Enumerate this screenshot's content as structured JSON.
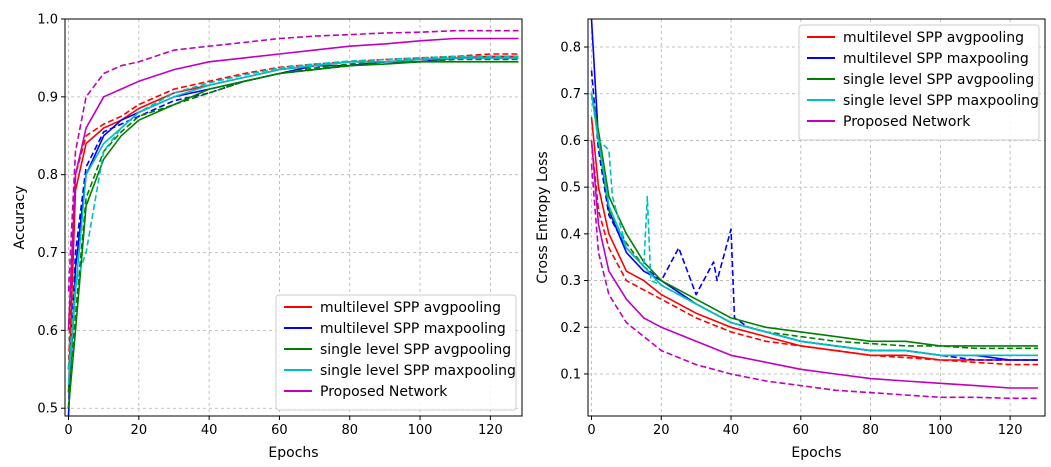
{
  "chart_data": [
    {
      "type": "line",
      "xlabel": "Epochs",
      "ylabel": "Accuracy",
      "xlim": [
        -1,
        129
      ],
      "ylim": [
        0.49,
        1.0
      ],
      "xticks": [
        0,
        20,
        40,
        60,
        80,
        100,
        120
      ],
      "yticks": [
        0.5,
        0.6,
        0.7,
        0.8,
        0.9,
        1.0
      ],
      "ytick_labels": [
        "0.5",
        "0.6",
        "0.7",
        "0.8",
        "0.9",
        "1.0"
      ],
      "grid": true,
      "legend_position": "lower-right",
      "series": [
        {
          "name": "multilevel SPP avgpooling",
          "color": "#ff0000",
          "style": "solid",
          "x": [
            0,
            2,
            5,
            10,
            15,
            20,
            30,
            40,
            50,
            60,
            70,
            80,
            90,
            100,
            110,
            120,
            128
          ],
          "y": [
            0.52,
            0.78,
            0.84,
            0.86,
            0.87,
            0.885,
            0.905,
            0.915,
            0.925,
            0.935,
            0.94,
            0.945,
            0.945,
            0.948,
            0.95,
            0.952,
            0.952
          ]
        },
        {
          "name": "multilevel SPP avgpooling",
          "color": "#ff0000",
          "style": "dashed",
          "x": [
            0,
            2,
            5,
            10,
            15,
            20,
            30,
            40,
            50,
            60,
            70,
            80,
            90,
            100,
            110,
            120,
            128
          ],
          "y": [
            0.55,
            0.8,
            0.85,
            0.865,
            0.875,
            0.89,
            0.91,
            0.92,
            0.93,
            0.938,
            0.942,
            0.945,
            0.948,
            0.95,
            0.952,
            0.955,
            0.955
          ]
        },
        {
          "name": "multilevel SPP maxpooling",
          "color": "#0000ff",
          "style": "solid",
          "x": [
            0,
            2,
            5,
            10,
            15,
            20,
            30,
            40,
            50,
            60,
            70,
            80,
            90,
            100,
            110,
            120,
            128
          ],
          "y": [
            0.49,
            0.68,
            0.8,
            0.85,
            0.87,
            0.88,
            0.9,
            0.91,
            0.92,
            0.93,
            0.94,
            0.94,
            0.945,
            0.945,
            0.95,
            0.95,
            0.95
          ]
        },
        {
          "name": "multilevel SPP maxpooling",
          "color": "#0000ff",
          "style": "dashed",
          "x": [
            0,
            2,
            5,
            10,
            15,
            20,
            30,
            40,
            50,
            60,
            70,
            80,
            90,
            100,
            110,
            120,
            128
          ],
          "y": [
            0.5,
            0.7,
            0.81,
            0.855,
            0.865,
            0.875,
            0.895,
            0.905,
            0.92,
            0.93,
            0.935,
            0.94,
            0.945,
            0.948,
            0.95,
            0.952,
            0.952
          ]
        },
        {
          "name": "single level SPP avgpooling",
          "color": "#008000",
          "style": "solid",
          "x": [
            0,
            2,
            5,
            10,
            15,
            20,
            30,
            40,
            50,
            60,
            70,
            80,
            90,
            100,
            110,
            120,
            128
          ],
          "y": [
            0.5,
            0.6,
            0.76,
            0.82,
            0.85,
            0.87,
            0.89,
            0.91,
            0.92,
            0.93,
            0.935,
            0.94,
            0.942,
            0.945,
            0.945,
            0.945,
            0.945
          ]
        },
        {
          "name": "single level SPP avgpooling",
          "color": "#008000",
          "style": "dashed",
          "x": [
            0,
            2,
            5,
            10,
            15,
            20,
            30,
            40,
            50,
            60,
            70,
            80,
            90,
            100,
            110,
            120,
            128
          ],
          "y": [
            0.52,
            0.62,
            0.77,
            0.83,
            0.855,
            0.875,
            0.89,
            0.905,
            0.92,
            0.93,
            0.937,
            0.942,
            0.945,
            0.945,
            0.948,
            0.948,
            0.948
          ]
        },
        {
          "name": "single level SPP maxpooling",
          "color": "#00bfbf",
          "style": "solid",
          "x": [
            0,
            2,
            5,
            10,
            15,
            20,
            30,
            40,
            50,
            60,
            70,
            80,
            90,
            100,
            110,
            120,
            128
          ],
          "y": [
            0.53,
            0.65,
            0.8,
            0.84,
            0.86,
            0.88,
            0.9,
            0.915,
            0.925,
            0.935,
            0.94,
            0.945,
            0.945,
            0.948,
            0.95,
            0.95,
            0.95
          ]
        },
        {
          "name": "single level SPP maxpooling",
          "color": "#00bfbf",
          "style": "dashed",
          "x": [
            0,
            2,
            5,
            10,
            15,
            20,
            30,
            40,
            50,
            60,
            70,
            80,
            90,
            100,
            110,
            120,
            128
          ],
          "y": [
            0.55,
            0.66,
            0.7,
            0.83,
            0.86,
            0.88,
            0.905,
            0.918,
            0.928,
            0.937,
            0.942,
            0.946,
            0.948,
            0.95,
            0.952,
            0.952,
            0.952
          ]
        },
        {
          "name": "Proposed Network",
          "color": "#bf00bf",
          "style": "solid",
          "x": [
            0,
            2,
            5,
            10,
            15,
            20,
            30,
            40,
            50,
            60,
            70,
            80,
            90,
            100,
            110,
            120,
            128
          ],
          "y": [
            0.6,
            0.8,
            0.86,
            0.9,
            0.91,
            0.92,
            0.935,
            0.945,
            0.95,
            0.955,
            0.96,
            0.965,
            0.968,
            0.972,
            0.975,
            0.975,
            0.975
          ]
        },
        {
          "name": "Proposed Network",
          "color": "#bf00bf",
          "style": "dashed",
          "x": [
            0,
            2,
            5,
            10,
            15,
            20,
            30,
            40,
            50,
            60,
            70,
            80,
            90,
            100,
            110,
            120,
            128
          ],
          "y": [
            0.65,
            0.83,
            0.9,
            0.93,
            0.94,
            0.945,
            0.96,
            0.965,
            0.97,
            0.975,
            0.978,
            0.98,
            0.982,
            0.983,
            0.985,
            0.985,
            0.985
          ]
        }
      ],
      "legend": [
        "multilevel SPP avgpooling",
        "multilevel SPP maxpooling",
        "single level SPP avgpooling",
        "single level SPP maxpooling",
        "Proposed Network"
      ]
    },
    {
      "type": "line",
      "xlabel": "Epochs",
      "ylabel": "Cross Entropy Loss",
      "xlim": [
        -1,
        130
      ],
      "ylim": [
        0.01,
        0.86
      ],
      "xticks": [
        0,
        20,
        40,
        60,
        80,
        100,
        120
      ],
      "yticks": [
        0.1,
        0.2,
        0.3,
        0.4,
        0.5,
        0.6,
        0.7,
        0.8
      ],
      "ytick_labels": [
        "0.1",
        "0.2",
        "0.3",
        "0.4",
        "0.5",
        "0.6",
        "0.7",
        "0.8"
      ],
      "grid": true,
      "legend_position": "top-right",
      "series": [
        {
          "name": "multilevel SPP avgpooling",
          "color": "#ff0000",
          "style": "solid",
          "x": [
            0,
            2,
            5,
            10,
            15,
            20,
            30,
            40,
            50,
            60,
            70,
            80,
            90,
            100,
            110,
            120,
            128
          ],
          "y": [
            0.65,
            0.5,
            0.4,
            0.32,
            0.3,
            0.27,
            0.23,
            0.2,
            0.18,
            0.16,
            0.15,
            0.14,
            0.14,
            0.13,
            0.13,
            0.13,
            0.13
          ]
        },
        {
          "name": "multilevel SPP avgpooling",
          "color": "#ff0000",
          "style": "dashed",
          "x": [
            0,
            2,
            5,
            10,
            15,
            20,
            30,
            40,
            50,
            60,
            70,
            80,
            90,
            100,
            110,
            120,
            128
          ],
          "y": [
            0.6,
            0.45,
            0.37,
            0.3,
            0.28,
            0.26,
            0.22,
            0.19,
            0.17,
            0.16,
            0.15,
            0.14,
            0.135,
            0.13,
            0.125,
            0.12,
            0.12
          ]
        },
        {
          "name": "multilevel SPP maxpooling",
          "color": "#0000ff",
          "style": "solid",
          "x": [
            0,
            2,
            5,
            10,
            15,
            20,
            30,
            40,
            50,
            60,
            70,
            80,
            90,
            100,
            110,
            120,
            128
          ],
          "y": [
            0.86,
            0.6,
            0.45,
            0.36,
            0.32,
            0.3,
            0.25,
            0.21,
            0.19,
            0.17,
            0.16,
            0.15,
            0.15,
            0.14,
            0.14,
            0.13,
            0.13
          ]
        },
        {
          "name": "multilevel SPP maxpooling",
          "color": "#0000ff",
          "style": "dashed",
          "x": [
            0,
            2,
            5,
            10,
            15,
            20,
            25,
            30,
            35,
            36,
            40,
            41,
            45,
            50,
            60,
            70,
            80,
            90,
            100,
            110,
            120,
            128
          ],
          "y": [
            0.75,
            0.58,
            0.44,
            0.37,
            0.33,
            0.3,
            0.37,
            0.27,
            0.34,
            0.3,
            0.41,
            0.22,
            0.2,
            0.19,
            0.17,
            0.16,
            0.15,
            0.15,
            0.14,
            0.13,
            0.13,
            0.13
          ]
        },
        {
          "name": "single level SPP avgpooling",
          "color": "#008000",
          "style": "solid",
          "x": [
            0,
            2,
            5,
            10,
            15,
            20,
            30,
            40,
            50,
            60,
            70,
            80,
            90,
            100,
            110,
            120,
            128
          ],
          "y": [
            0.7,
            0.62,
            0.48,
            0.4,
            0.34,
            0.3,
            0.26,
            0.22,
            0.2,
            0.19,
            0.18,
            0.17,
            0.17,
            0.16,
            0.16,
            0.16,
            0.16
          ]
        },
        {
          "name": "single level SPP avgpooling",
          "color": "#008000",
          "style": "dashed",
          "x": [
            0,
            2,
            5,
            10,
            15,
            20,
            30,
            40,
            50,
            60,
            70,
            80,
            90,
            100,
            110,
            120,
            128
          ],
          "y": [
            0.7,
            0.6,
            0.45,
            0.38,
            0.33,
            0.29,
            0.25,
            0.21,
            0.19,
            0.18,
            0.17,
            0.165,
            0.16,
            0.16,
            0.155,
            0.155,
            0.155
          ]
        },
        {
          "name": "single level SPP maxpooling",
          "color": "#00bfbf",
          "style": "solid",
          "x": [
            0,
            2,
            5,
            10,
            15,
            20,
            30,
            40,
            50,
            60,
            70,
            80,
            90,
            100,
            110,
            120,
            128
          ],
          "y": [
            0.7,
            0.6,
            0.46,
            0.37,
            0.33,
            0.29,
            0.25,
            0.21,
            0.19,
            0.17,
            0.16,
            0.15,
            0.15,
            0.14,
            0.14,
            0.14,
            0.14
          ]
        },
        {
          "name": "single level SPP maxpooling",
          "color": "#00bfbf",
          "style": "dashed",
          "x": [
            0,
            2,
            5,
            6,
            10,
            15,
            16,
            17,
            20,
            30,
            40,
            50,
            60,
            70,
            80,
            90,
            100,
            110,
            120,
            128
          ],
          "y": [
            0.7,
            0.6,
            0.58,
            0.48,
            0.37,
            0.33,
            0.48,
            0.3,
            0.29,
            0.25,
            0.21,
            0.19,
            0.17,
            0.16,
            0.15,
            0.15,
            0.14,
            0.14,
            0.14,
            0.14
          ]
        },
        {
          "name": "Proposed Network",
          "color": "#bf00bf",
          "style": "solid",
          "x": [
            0,
            2,
            5,
            10,
            15,
            20,
            30,
            40,
            50,
            60,
            70,
            80,
            90,
            100,
            110,
            120,
            128
          ],
          "y": [
            0.6,
            0.42,
            0.32,
            0.26,
            0.22,
            0.2,
            0.17,
            0.14,
            0.125,
            0.11,
            0.1,
            0.09,
            0.085,
            0.08,
            0.075,
            0.07,
            0.07
          ]
        },
        {
          "name": "Proposed Network",
          "color": "#bf00bf",
          "style": "dashed",
          "x": [
            0,
            2,
            5,
            10,
            15,
            20,
            30,
            40,
            50,
            60,
            70,
            80,
            90,
            100,
            110,
            120,
            128
          ],
          "y": [
            0.55,
            0.36,
            0.27,
            0.21,
            0.18,
            0.15,
            0.12,
            0.1,
            0.085,
            0.075,
            0.065,
            0.06,
            0.055,
            0.05,
            0.05,
            0.048,
            0.048
          ]
        }
      ],
      "legend": [
        "multilevel SPP avgpooling",
        "multilevel SPP maxpooling",
        "single level SPP avgpooling",
        "single level SPP maxpooling",
        "Proposed Network"
      ]
    }
  ],
  "legend_colors": {
    "multilevel SPP avgpooling": "#ff0000",
    "multilevel SPP maxpooling": "#0000ff",
    "single level SPP avgpooling": "#008000",
    "single level SPP maxpooling": "#00bfbf",
    "Proposed Network": "#bf00bf"
  }
}
